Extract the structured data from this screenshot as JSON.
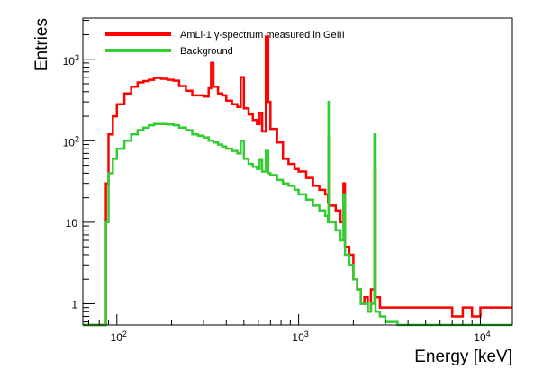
{
  "chart_data": {
    "type": "line",
    "xlabel": "Energy [keV]",
    "ylabel": "Entries",
    "xscale": "log",
    "yscale": "log",
    "xlim": [
      65,
      15000
    ],
    "ylim": [
      0.55,
      3200
    ],
    "x_ticks": [
      {
        "base": "10",
        "exp": "2",
        "value": 100
      },
      {
        "base": "10",
        "exp": "3",
        "value": 1000
      },
      {
        "base": "10",
        "exp": "4",
        "value": 10000
      }
    ],
    "y_ticks": [
      {
        "label": "1",
        "value": 1
      },
      {
        "label": "10",
        "value": 10
      },
      {
        "base": "10",
        "exp": "2",
        "value": 100
      },
      {
        "base": "10",
        "exp": "3",
        "value": 1000
      }
    ],
    "grid": false,
    "legend_position": "top-left",
    "series": [
      {
        "name": "AmLi-1 γ-spectrum measured in GeIII",
        "color": "#ff0000",
        "points": [
          [
            65,
            0.55
          ],
          [
            85,
            0.55
          ],
          [
            87,
            30
          ],
          [
            90,
            120
          ],
          [
            95,
            200
          ],
          [
            100,
            280
          ],
          [
            110,
            380
          ],
          [
            120,
            460
          ],
          [
            130,
            520
          ],
          [
            140,
            540
          ],
          [
            150,
            560
          ],
          [
            160,
            590
          ],
          [
            175,
            575
          ],
          [
            190,
            560
          ],
          [
            205,
            545
          ],
          [
            220,
            470
          ],
          [
            240,
            410
          ],
          [
            260,
            360
          ],
          [
            280,
            360
          ],
          [
            300,
            350
          ],
          [
            320,
            440
          ],
          [
            330,
            900
          ],
          [
            340,
            460
          ],
          [
            360,
            380
          ],
          [
            380,
            360
          ],
          [
            400,
            310
          ],
          [
            430,
            280
          ],
          [
            460,
            260
          ],
          [
            480,
            600
          ],
          [
            500,
            250
          ],
          [
            530,
            210
          ],
          [
            560,
            180
          ],
          [
            590,
            160
          ],
          [
            610,
            220
          ],
          [
            630,
            130
          ],
          [
            660,
            1900
          ],
          [
            680,
            300
          ],
          [
            700,
            140
          ],
          [
            760,
            95
          ],
          [
            820,
            60
          ],
          [
            880,
            52
          ],
          [
            950,
            45
          ],
          [
            1000,
            42
          ],
          [
            1100,
            35
          ],
          [
            1200,
            28
          ],
          [
            1300,
            25
          ],
          [
            1400,
            22
          ],
          [
            1450,
            18
          ],
          [
            1460,
            110
          ],
          [
            1480,
            16
          ],
          [
            1600,
            14
          ],
          [
            1700,
            10
          ],
          [
            1764,
            30
          ],
          [
            1800,
            5
          ],
          [
            1900,
            4
          ],
          [
            2000,
            2
          ],
          [
            2100,
            1.5
          ],
          [
            2200,
            1
          ],
          [
            2300,
            1.2
          ],
          [
            2400,
            0.8
          ],
          [
            2500,
            1.5
          ],
          [
            2614,
            45
          ],
          [
            2650,
            1.2
          ],
          [
            2800,
            0.9
          ],
          [
            3000,
            0.9
          ],
          [
            3500,
            0.9
          ],
          [
            4000,
            0.9
          ],
          [
            5000,
            0.9
          ],
          [
            6000,
            0.9
          ],
          [
            7000,
            0.7
          ],
          [
            8000,
            0.9
          ],
          [
            9000,
            0.7
          ],
          [
            10000,
            0.9
          ],
          [
            12000,
            0.9
          ],
          [
            15000,
            0.9
          ]
        ]
      },
      {
        "name": "Background",
        "color": "#33cc33",
        "points": [
          [
            65,
            0.55
          ],
          [
            85,
            0.55
          ],
          [
            87,
            10
          ],
          [
            90,
            40
          ],
          [
            95,
            60
          ],
          [
            100,
            80
          ],
          [
            110,
            100
          ],
          [
            120,
            120
          ],
          [
            130,
            135
          ],
          [
            140,
            145
          ],
          [
            150,
            155
          ],
          [
            160,
            160
          ],
          [
            175,
            160
          ],
          [
            190,
            158
          ],
          [
            205,
            155
          ],
          [
            220,
            145
          ],
          [
            240,
            135
          ],
          [
            260,
            120
          ],
          [
            280,
            115
          ],
          [
            300,
            110
          ],
          [
            320,
            100
          ],
          [
            340,
            95
          ],
          [
            360,
            90
          ],
          [
            380,
            85
          ],
          [
            400,
            80
          ],
          [
            430,
            75
          ],
          [
            460,
            70
          ],
          [
            480,
            100
          ],
          [
            500,
            60
          ],
          [
            530,
            52
          ],
          [
            560,
            48
          ],
          [
            590,
            45
          ],
          [
            610,
            58
          ],
          [
            630,
            42
          ],
          [
            660,
            75
          ],
          [
            680,
            40
          ],
          [
            700,
            38
          ],
          [
            760,
            33
          ],
          [
            820,
            30
          ],
          [
            880,
            28
          ],
          [
            950,
            25
          ],
          [
            1000,
            22
          ],
          [
            1100,
            19
          ],
          [
            1200,
            16
          ],
          [
            1300,
            14
          ],
          [
            1400,
            12
          ],
          [
            1450,
            10
          ],
          [
            1460,
            300
          ],
          [
            1480,
            10
          ],
          [
            1600,
            8
          ],
          [
            1700,
            6
          ],
          [
            1764,
            22
          ],
          [
            1800,
            4
          ],
          [
            1900,
            3
          ],
          [
            2000,
            2
          ],
          [
            2100,
            1.5
          ],
          [
            2200,
            1
          ],
          [
            2300,
            1
          ],
          [
            2400,
            0.8
          ],
          [
            2500,
            1
          ],
          [
            2614,
            120
          ],
          [
            2650,
            0.8
          ],
          [
            2800,
            0.7
          ],
          [
            3000,
            0.6
          ],
          [
            3500,
            0.55
          ],
          [
            15000,
            0.55
          ]
        ]
      }
    ]
  }
}
